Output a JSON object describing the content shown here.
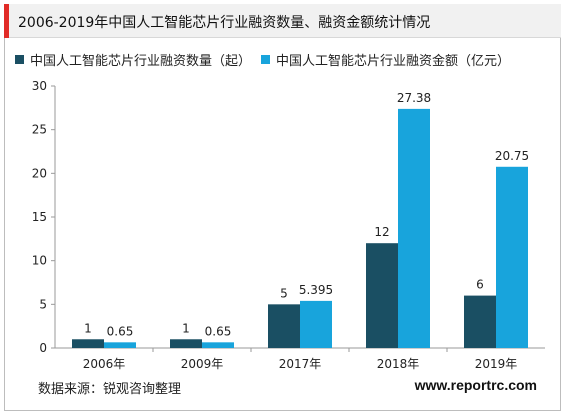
{
  "header": {
    "title": "2006-2019年中国人工智能芯片行业融资数量、融资金额统计情况"
  },
  "footer": {
    "source": "数据来源：锐观咨询整理",
    "website": "www.reportrc.com"
  },
  "colors": {
    "series_1": "#1a4f63",
    "series_2": "#18a4dc",
    "accent": "#e12b27"
  },
  "chart_data": {
    "type": "bar",
    "title": "2006-2019年中国人工智能芯片行业融资数量、融资金额统计情况",
    "categories": [
      "2006年",
      "2009年",
      "2017年",
      "2018年",
      "2019年"
    ],
    "series": [
      {
        "name": "中国人工智能芯片行业融资数量（起）",
        "values": [
          1,
          1,
          5,
          12,
          6
        ],
        "labels": [
          "1",
          "1",
          "5",
          "12",
          "6"
        ]
      },
      {
        "name": "中国人工智能芯片行业融资金额（亿元）",
        "values": [
          0.65,
          0.65,
          5.395,
          27.38,
          20.75
        ],
        "labels": [
          "0.65",
          "0.65",
          "5.395",
          "27.38",
          "20.75"
        ]
      }
    ],
    "ylim": [
      0,
      30
    ],
    "yticks": [
      "0",
      "5",
      "10",
      "15",
      "20",
      "25",
      "30"
    ],
    "xlabel": "",
    "ylabel": "",
    "grid": false,
    "legend_position": "top-left"
  }
}
